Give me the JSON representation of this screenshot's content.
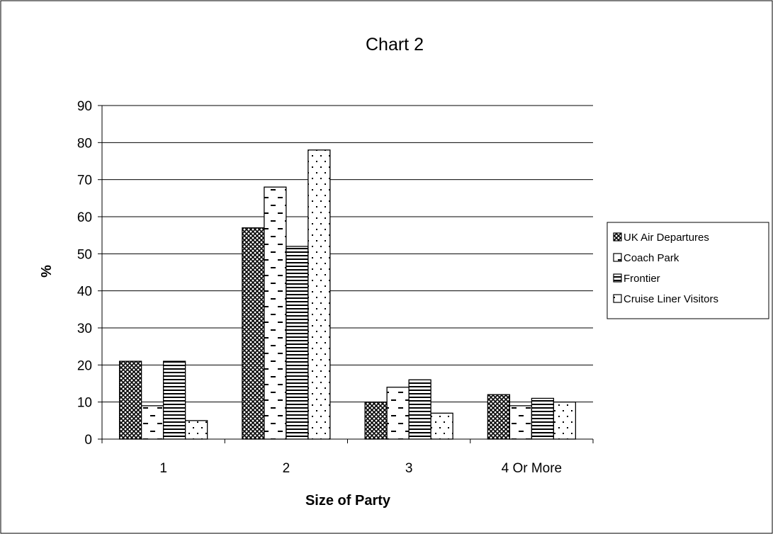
{
  "chart_data": {
    "type": "bar",
    "title": "Chart 2",
    "xlabel": "Size of Party",
    "ylabel": "%",
    "categories": [
      "1",
      "2",
      "3",
      "4 Or More"
    ],
    "series": [
      {
        "name": "UK Air Departures",
        "values": [
          21,
          57,
          10,
          12
        ],
        "pattern": "crosshatch"
      },
      {
        "name": "Coach Park",
        "values": [
          9,
          68,
          14,
          9
        ],
        "pattern": "dash"
      },
      {
        "name": "Frontier",
        "values": [
          21,
          52,
          16,
          11
        ],
        "pattern": "hlines"
      },
      {
        "name": "Cruise Liner Visitors",
        "values": [
          5,
          78,
          7,
          10
        ],
        "pattern": "dots"
      }
    ],
    "ylim": [
      0,
      90
    ],
    "yticks": [
      0,
      10,
      20,
      30,
      40,
      50,
      60,
      70,
      80,
      90
    ],
    "grid": true,
    "legend_position": "right",
    "colors": {
      "bar_fill": "#ffffff",
      "bar_stroke": "#000000",
      "gridline": "#000000",
      "border": "#000000"
    }
  }
}
